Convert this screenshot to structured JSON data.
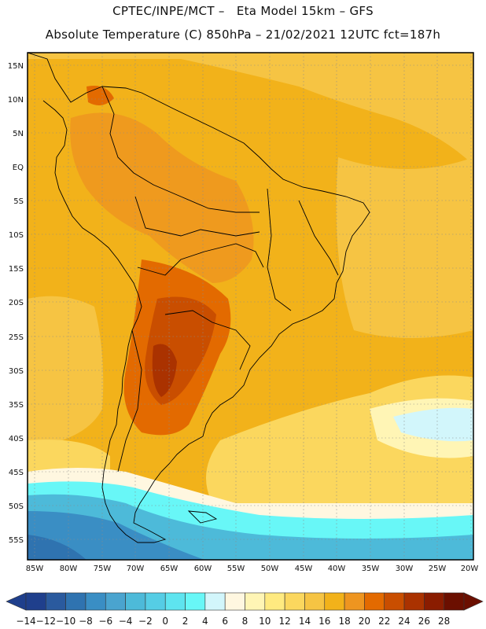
{
  "header": {
    "title_line1": "CPTEC/INPE/MCT –   Eta Model 15km – GFS",
    "title_line2": "Absolute Temperature (C) 850hPa – 21/02/2021 12UTC fct=187h"
  },
  "map": {
    "lat_labels": [
      "15N",
      "10N",
      "5N",
      "EQ",
      "5S",
      "10S",
      "15S",
      "20S",
      "25S",
      "30S",
      "35S",
      "40S",
      "45S",
      "50S",
      "55S"
    ],
    "lon_labels": [
      "85W",
      "80W",
      "75W",
      "70W",
      "65W",
      "60W",
      "55W",
      "50W",
      "45W",
      "40W",
      "35W",
      "30W",
      "25W",
      "20W"
    ]
  },
  "colorbar": {
    "labels": [
      "-14",
      "-12",
      "-10",
      "-8",
      "-6",
      "-4",
      "-2",
      "0",
      "2",
      "4",
      "6",
      "8",
      "10",
      "12",
      "14",
      "16",
      "18",
      "20",
      "22",
      "24",
      "26",
      "28"
    ],
    "colors": [
      "#1f3f8c",
      "#2a5a9e",
      "#2f73b0",
      "#3a8ec4",
      "#4aa4cf",
      "#4dbad9",
      "#55cde5",
      "#5ee4ef",
      "#68f7f7",
      "#d2f6fb",
      "#fff7e0",
      "#fff5b5",
      "#ffea80",
      "#fbd75e",
      "#f6c443",
      "#f2b21a",
      "#ee9520",
      "#e36a00",
      "#c94e00",
      "#aa3200",
      "#8a1c00",
      "#6b0f00"
    ]
  }
}
